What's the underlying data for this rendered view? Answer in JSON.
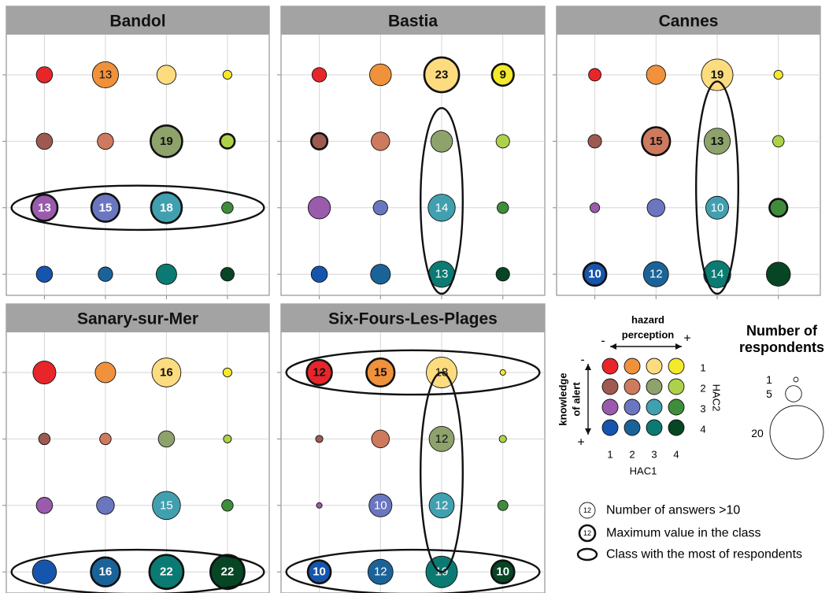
{
  "chart_data": {
    "type": "bubble-matrix",
    "xaxis": "HAC1",
    "yaxis": "HAC2",
    "x": [
      1,
      2,
      3,
      4
    ],
    "y": [
      1,
      2,
      3,
      4
    ],
    "colors": [
      [
        "#e8262a",
        "#f0913c",
        "#fcdc7f",
        "#f4e92b"
      ],
      [
        "#9e5a51",
        "#cd7a5e",
        "#8ea26c",
        "#add249"
      ],
      [
        "#9a5bac",
        "#6b76c1",
        "#41a0af",
        "#3f8d3b"
      ],
      [
        "#1555ad",
        "#1a6399",
        "#0b7a72",
        "#064624"
      ]
    ],
    "panels": [
      {
        "title": "Bandol",
        "cells": [
          {
            "hac1": 1,
            "hac2": 1,
            "n": 5
          },
          {
            "hac1": 2,
            "hac2": 1,
            "n": 13,
            "label": "13"
          },
          {
            "hac1": 3,
            "hac2": 1,
            "n": 7
          },
          {
            "hac1": 4,
            "hac2": 1,
            "n": 1.5
          },
          {
            "hac1": 1,
            "hac2": 2,
            "n": 5
          },
          {
            "hac1": 2,
            "hac2": 2,
            "n": 5
          },
          {
            "hac1": 3,
            "hac2": 2,
            "n": 19,
            "label": "19",
            "max": true
          },
          {
            "hac1": 4,
            "hac2": 2,
            "n": 4,
            "max": true
          },
          {
            "hac1": 1,
            "hac2": 3,
            "n": 13,
            "label": "13",
            "max": true
          },
          {
            "hac1": 2,
            "hac2": 3,
            "n": 15,
            "label": "15",
            "max": true
          },
          {
            "hac1": 3,
            "hac2": 3,
            "n": 18,
            "label": "18",
            "max": true
          },
          {
            "hac1": 4,
            "hac2": 3,
            "n": 2.5
          },
          {
            "hac1": 1,
            "hac2": 4,
            "n": 5
          },
          {
            "hac1": 2,
            "hac2": 4,
            "n": 4
          },
          {
            "hac1": 3,
            "hac2": 4,
            "n": 8
          },
          {
            "hac1": 4,
            "hac2": 4,
            "n": 3.5
          }
        ],
        "most_class": {
          "type": "row",
          "index": 3
        }
      },
      {
        "title": "Bastia",
        "cells": [
          {
            "hac1": 1,
            "hac2": 1,
            "n": 4
          },
          {
            "hac1": 2,
            "hac2": 1,
            "n": 9
          },
          {
            "hac1": 3,
            "hac2": 1,
            "n": 23,
            "label": "23",
            "max": true,
            "bold": true
          },
          {
            "hac1": 4,
            "hac2": 1,
            "n": 9,
            "label": "9",
            "max": true
          },
          {
            "hac1": 1,
            "hac2": 2,
            "n": 5,
            "max": true
          },
          {
            "hac1": 2,
            "hac2": 2,
            "n": 6.5
          },
          {
            "hac1": 3,
            "hac2": 2,
            "n": 9
          },
          {
            "hac1": 4,
            "hac2": 2,
            "n": 3.5
          },
          {
            "hac1": 1,
            "hac2": 3,
            "n": 9.5
          },
          {
            "hac1": 2,
            "hac2": 3,
            "n": 4
          },
          {
            "hac1": 3,
            "hac2": 3,
            "n": 14,
            "label": "14"
          },
          {
            "hac1": 4,
            "hac2": 3,
            "n": 2.5
          },
          {
            "hac1": 1,
            "hac2": 4,
            "n": 5
          },
          {
            "hac1": 2,
            "hac2": 4,
            "n": 7.5
          },
          {
            "hac1": 3,
            "hac2": 4,
            "n": 13,
            "label": "13"
          },
          {
            "hac1": 4,
            "hac2": 4,
            "n": 3.5
          }
        ],
        "most_class": {
          "type": "col",
          "index": 3
        }
      },
      {
        "title": "Cannes",
        "cells": [
          {
            "hac1": 1,
            "hac2": 1,
            "n": 3
          },
          {
            "hac1": 2,
            "hac2": 1,
            "n": 7
          },
          {
            "hac1": 3,
            "hac2": 1,
            "n": 19,
            "label": "19",
            "bold": true
          },
          {
            "hac1": 4,
            "hac2": 1,
            "n": 1.5
          },
          {
            "hac1": 1,
            "hac2": 2,
            "n": 3.5
          },
          {
            "hac1": 2,
            "hac2": 2,
            "n": 15,
            "label": "15",
            "max": true,
            "bold": true
          },
          {
            "hac1": 3,
            "hac2": 2,
            "n": 13,
            "label": "13",
            "bold": true
          },
          {
            "hac1": 4,
            "hac2": 2,
            "n": 2.5
          },
          {
            "hac1": 1,
            "hac2": 3,
            "n": 1.8
          },
          {
            "hac1": 2,
            "hac2": 3,
            "n": 6
          },
          {
            "hac1": 3,
            "hac2": 3,
            "n": 10,
            "label": "10"
          },
          {
            "hac1": 4,
            "hac2": 3,
            "n": 6,
            "max": true
          },
          {
            "hac1": 1,
            "hac2": 4,
            "n": 10,
            "label": "10",
            "max": true
          },
          {
            "hac1": 2,
            "hac2": 4,
            "n": 12,
            "label": "12"
          },
          {
            "hac1": 3,
            "hac2": 4,
            "n": 14,
            "label": "14"
          },
          {
            "hac1": 4,
            "hac2": 4,
            "n": 11
          }
        ],
        "most_class": {
          "type": "col",
          "index": 3
        }
      },
      {
        "title": "Sanary-sur-Mer",
        "cells": [
          {
            "hac1": 1,
            "hac2": 1,
            "n": 10
          },
          {
            "hac1": 2,
            "hac2": 1,
            "n": 8
          },
          {
            "hac1": 3,
            "hac2": 1,
            "n": 16,
            "label": "16",
            "bold": true
          },
          {
            "hac1": 4,
            "hac2": 1,
            "n": 1.5
          },
          {
            "hac1": 1,
            "hac2": 2,
            "n": 2.5
          },
          {
            "hac1": 2,
            "hac2": 2,
            "n": 2.5
          },
          {
            "hac1": 3,
            "hac2": 2,
            "n": 5
          },
          {
            "hac1": 4,
            "hac2": 2,
            "n": 1.2
          },
          {
            "hac1": 1,
            "hac2": 3,
            "n": 5
          },
          {
            "hac1": 2,
            "hac2": 3,
            "n": 6
          },
          {
            "hac1": 3,
            "hac2": 3,
            "n": 15,
            "label": "15"
          },
          {
            "hac1": 4,
            "hac2": 3,
            "n": 2.5
          },
          {
            "hac1": 1,
            "hac2": 4,
            "n": 11
          },
          {
            "hac1": 2,
            "hac2": 4,
            "n": 16,
            "label": "16",
            "max": true
          },
          {
            "hac1": 3,
            "hac2": 4,
            "n": 22,
            "label": "22",
            "max": true
          },
          {
            "hac1": 4,
            "hac2": 4,
            "n": 22,
            "label": "22",
            "max": true
          }
        ],
        "most_class": {
          "type": "row",
          "index": 4
        }
      },
      {
        "title": "Six-Fours-Les-Plages",
        "cells": [
          {
            "hac1": 1,
            "hac2": 1,
            "n": 12,
            "label": "12",
            "max": true,
            "bold": true
          },
          {
            "hac1": 2,
            "hac2": 1,
            "n": 15,
            "label": "15",
            "max": true,
            "bold": true
          },
          {
            "hac1": 3,
            "hac2": 1,
            "n": 18,
            "label": "18"
          },
          {
            "hac1": 4,
            "hac2": 1,
            "n": 0.6
          },
          {
            "hac1": 1,
            "hac2": 2,
            "n": 1
          },
          {
            "hac1": 2,
            "hac2": 2,
            "n": 6
          },
          {
            "hac1": 3,
            "hac2": 2,
            "n": 12,
            "label": "12"
          },
          {
            "hac1": 4,
            "hac2": 2,
            "n": 1
          },
          {
            "hac1": 1,
            "hac2": 3,
            "n": 0.6
          },
          {
            "hac1": 2,
            "hac2": 3,
            "n": 10,
            "label": "10"
          },
          {
            "hac1": 3,
            "hac2": 3,
            "n": 12,
            "label": "12"
          },
          {
            "hac1": 4,
            "hac2": 3,
            "n": 2
          },
          {
            "hac1": 1,
            "hac2": 4,
            "n": 10,
            "label": "10",
            "max": true,
            "bold": true
          },
          {
            "hac1": 2,
            "hac2": 4,
            "n": 12,
            "label": "12"
          },
          {
            "hac1": 3,
            "hac2": 4,
            "n": 19,
            "label": "19"
          },
          {
            "hac1": 4,
            "hac2": 4,
            "n": 10,
            "label": "10",
            "max": true,
            "bold": true
          }
        ],
        "most_class": {
          "type": "cross",
          "row": 4,
          "col": 3
        }
      }
    ]
  },
  "legend": {
    "hazard_perception": "hazard\nperception",
    "minus": "-",
    "plus": "+",
    "knowledge_of_alert": "knowledge\nof alert",
    "hac1_label": "HAC1",
    "hac2_label": "HAC2",
    "numbers": [
      "1",
      "2",
      "3",
      "4"
    ],
    "size_title": "Number of\nrespondents",
    "size_values": [
      "1",
      "5",
      "20"
    ],
    "key_items": [
      {
        "symbol": "12",
        "text": "Number of answers >10"
      },
      {
        "symbol": "12",
        "text": "Maximum value in the class"
      },
      {
        "symbol": "",
        "text": "Class with the most of respondents"
      }
    ]
  }
}
